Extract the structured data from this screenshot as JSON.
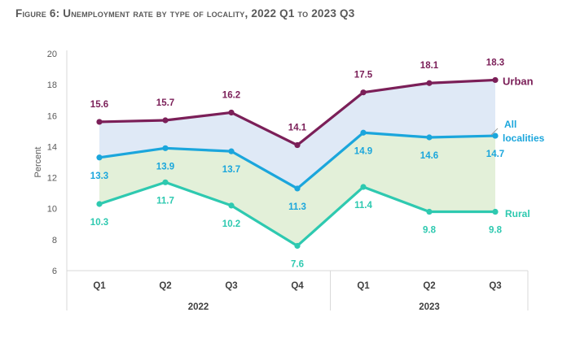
{
  "title": "Figure 6: Unemployment rate by type of locality, 2022 Q1 to 2023 Q3",
  "chart_data": {
    "type": "line",
    "title": "Figure 6: Unemployment rate by type of locality, 2022 Q1 to 2023 Q3",
    "ylabel": "Percent",
    "ylim": [
      6,
      20
    ],
    "yticks": [
      "6",
      "8",
      "10",
      "12",
      "14",
      "16",
      "18",
      "20"
    ],
    "categories": [
      "Q1",
      "Q2",
      "Q3",
      "Q4",
      "Q1",
      "Q2",
      "Q3"
    ],
    "groups": [
      {
        "label": "2022",
        "span": 4
      },
      {
        "label": "2023",
        "span": 3
      }
    ],
    "grid": false,
    "series": [
      {
        "name": "Urban",
        "color": "#7b1f58",
        "values": [
          15.6,
          15.7,
          16.2,
          14.1,
          17.5,
          18.1,
          18.3
        ],
        "labels": [
          "15.6",
          "15.7",
          "16.2",
          "14.1",
          "17.5",
          "18.1",
          "18.3"
        ]
      },
      {
        "name": "All localities",
        "color": "#1ba6dc",
        "values": [
          13.3,
          13.9,
          13.7,
          11.3,
          14.9,
          14.6,
          14.7
        ],
        "labels": [
          "13.3",
          "13.9",
          "13.7",
          "11.3",
          "14.9",
          "14.6",
          "14.7"
        ]
      },
      {
        "name": "Rural",
        "color": "#2ec9b0",
        "values": [
          10.3,
          11.7,
          10.2,
          7.6,
          11.4,
          9.8,
          9.8
        ],
        "labels": [
          "10.3",
          "11.7",
          "10.2",
          "7.6",
          "11.4",
          "9.8",
          "9.8"
        ]
      }
    ],
    "fills": [
      {
        "between": [
          "Urban",
          "All localities"
        ],
        "color": "#dfe9f6"
      },
      {
        "between": [
          "All localities",
          "Rural"
        ],
        "color": "#e3f0d9"
      }
    ],
    "legend": "inline-right"
  }
}
